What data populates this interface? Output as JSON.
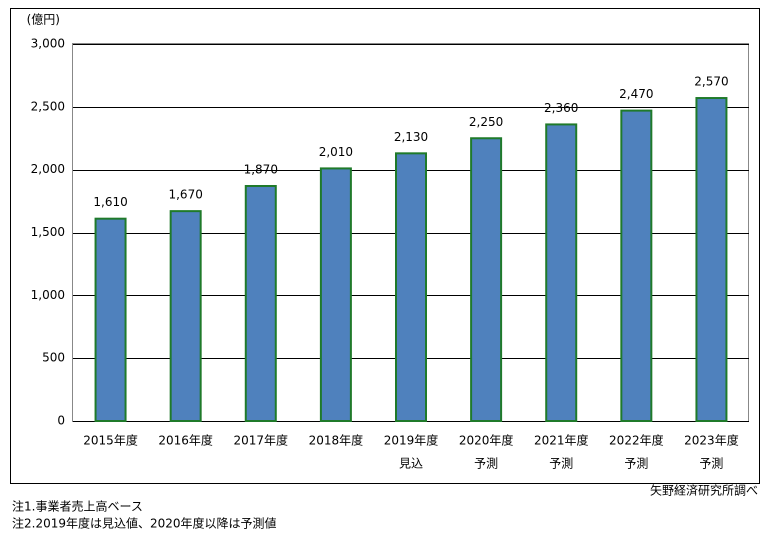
{
  "chart_data": {
    "type": "bar",
    "y_axis_label": "(億円)",
    "categories": [
      "2015年度",
      "2016年度",
      "2017年度",
      "2018年度",
      "2019年度",
      "2020年度",
      "2021年度",
      "2022年度",
      "2023年度"
    ],
    "category_sublabels": [
      null,
      null,
      null,
      null,
      "見込",
      "予測",
      "予測",
      "予測",
      "予測"
    ],
    "values": [
      1610,
      1670,
      1870,
      2010,
      2130,
      2250,
      2360,
      2470,
      2570
    ],
    "value_labels": [
      "1,610",
      "1,670",
      "1,870",
      "2,010",
      "2,130",
      "2,250",
      "2,360",
      "2,470",
      "2,570"
    ],
    "color": "#4f81bd",
    "edge_color": "#1f7a2a",
    "ylim": [
      0,
      3000
    ],
    "yticks": [
      0,
      500,
      {
        "value": 1000,
        "label": "1,000"
      },
      {
        "value": 1500,
        "label": "1,500"
      },
      {
        "value": 2000,
        "label": "2,000"
      },
      {
        "value": 2500,
        "label": "2,500"
      },
      {
        "value": 3000,
        "label": "3,000"
      }
    ],
    "grid": true,
    "source": "矢野経済研究所調べ",
    "notes": [
      "注1.事業者売上高ベース",
      "注2.2019年度は見込値、2020年度以降は予測値"
    ]
  }
}
